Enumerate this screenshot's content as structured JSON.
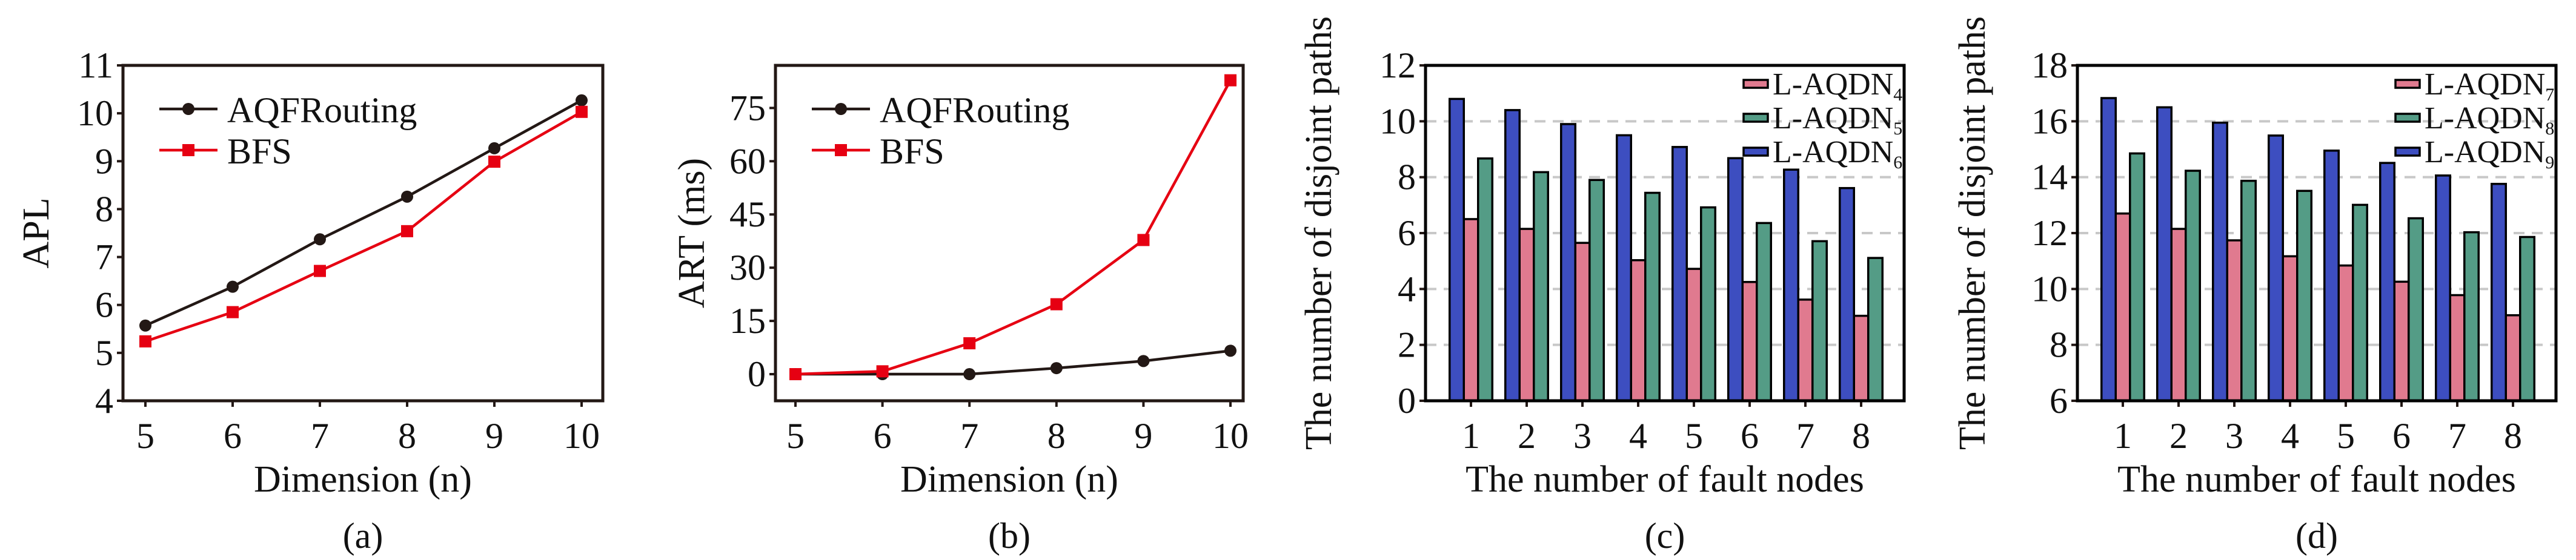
{
  "chart_data": [
    {
      "id": "a",
      "type": "line",
      "caption": "(a)",
      "xlabel": "Dimension (n)",
      "ylabel": "APL",
      "x": [
        5,
        6,
        7,
        8,
        9,
        10
      ],
      "xticks": [
        "5",
        "6",
        "7",
        "8",
        "9",
        "10"
      ],
      "ylim": [
        4,
        11
      ],
      "yticks": [
        "4",
        "5",
        "6",
        "7",
        "8",
        "9",
        "10",
        "11"
      ],
      "ytick_values": [
        4,
        5,
        6,
        7,
        8,
        9,
        10,
        11
      ],
      "grid": false,
      "legend_position": "top-left",
      "series": [
        {
          "name": "AQFRouting",
          "color": "#231815",
          "marker": "circle",
          "values": [
            5.57,
            6.38,
            7.37,
            8.26,
            9.27,
            10.27
          ]
        },
        {
          "name": "BFS",
          "color": "#E60012",
          "marker": "square",
          "values": [
            5.24,
            5.85,
            6.71,
            7.54,
            8.99,
            10.03
          ]
        }
      ]
    },
    {
      "id": "b",
      "type": "line",
      "caption": "(b)",
      "xlabel": "Dimension (n)",
      "ylabel": "ART (ms)",
      "x": [
        5,
        6,
        7,
        8,
        9,
        10
      ],
      "xticks": [
        "5",
        "6",
        "7",
        "8",
        "9",
        "10"
      ],
      "ylim": [
        -7.5,
        87
      ],
      "yticks": [
        "0",
        "15",
        "30",
        "45",
        "60",
        "75"
      ],
      "ytick_values": [
        0,
        15,
        30,
        45,
        60,
        75
      ],
      "grid": false,
      "legend_position": "top-left",
      "series": [
        {
          "name": "AQFRouting",
          "color": "#231815",
          "marker": "circle",
          "values": [
            0,
            0,
            0,
            1.7,
            3.7,
            6.6
          ]
        },
        {
          "name": "BFS",
          "color": "#E60012",
          "marker": "square",
          "values": [
            0,
            0.8,
            8.7,
            19.7,
            37.8,
            82.8
          ]
        }
      ]
    },
    {
      "id": "c",
      "type": "bar",
      "caption": "(c)",
      "xlabel": "The number of fault nodes",
      "ylabel": "The number of disjoint paths",
      "categories": [
        "1",
        "2",
        "3",
        "4",
        "5",
        "6",
        "7",
        "8"
      ],
      "ylim": [
        0,
        12
      ],
      "yticks": [
        "0",
        "2",
        "4",
        "6",
        "8",
        "10",
        "12"
      ],
      "ytick_values": [
        0,
        2,
        4,
        6,
        8,
        10,
        12
      ],
      "grid": true,
      "legend_position": "top-right",
      "series": [
        {
          "name": "L-AQDN",
          "subscript": "4",
          "color": "#E07A8F",
          "values": [
            6.5,
            6.15,
            5.65,
            5.03,
            4.72,
            4.25,
            3.62,
            3.04
          ]
        },
        {
          "name": "L-AQDN",
          "subscript": "5",
          "color": "#549C86",
          "values": [
            8.67,
            8.18,
            7.9,
            7.44,
            6.92,
            6.36,
            5.71,
            5.11
          ]
        },
        {
          "name": "L-AQDN",
          "subscript": "6",
          "color": "#3D4EC0",
          "values": [
            10.8,
            10.4,
            9.9,
            9.5,
            9.08,
            8.68,
            8.27,
            7.61
          ]
        }
      ]
    },
    {
      "id": "d",
      "type": "bar",
      "caption": "(d)",
      "xlabel": "The number of fault nodes",
      "ylabel": "The number of disjoint paths",
      "categories": [
        "1",
        "2",
        "3",
        "4",
        "5",
        "6",
        "7",
        "8"
      ],
      "ylim": [
        6,
        18
      ],
      "yticks": [
        "6",
        "8",
        "10",
        "12",
        "14",
        "16",
        "18"
      ],
      "ytick_values": [
        6,
        8,
        10,
        12,
        14,
        16,
        18
      ],
      "grid": true,
      "legend_position": "top-right",
      "series": [
        {
          "name": "L-AQDN",
          "subscript": "7",
          "color": "#E07A8F",
          "values": [
            12.7,
            12.15,
            11.74,
            11.17,
            10.84,
            10.26,
            9.78,
            9.06
          ]
        },
        {
          "name": "L-AQDN",
          "subscript": "8",
          "color": "#549C86",
          "values": [
            14.85,
            14.23,
            13.87,
            13.51,
            13.01,
            12.53,
            12.03,
            11.86
          ]
        },
        {
          "name": "L-AQDN",
          "subscript": "9",
          "color": "#3D4EC0",
          "values": [
            16.83,
            16.5,
            15.95,
            15.49,
            14.95,
            14.51,
            14.06,
            13.76
          ]
        }
      ]
    }
  ]
}
